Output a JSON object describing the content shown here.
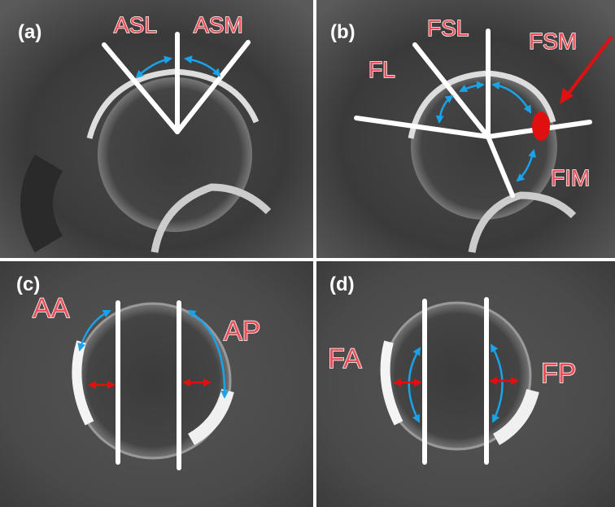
{
  "panels": [
    {
      "label": "(a)",
      "annotations": [
        "ASL",
        "ASM"
      ]
    },
    {
      "label": "(b)",
      "annotations": [
        "FSL",
        "FL",
        "FSM",
        "FIM"
      ]
    },
    {
      "label": "(c)",
      "annotations": [
        "AA",
        "AP"
      ]
    },
    {
      "label": "(d)",
      "annotations": [
        "FA",
        "FP"
      ]
    }
  ]
}
